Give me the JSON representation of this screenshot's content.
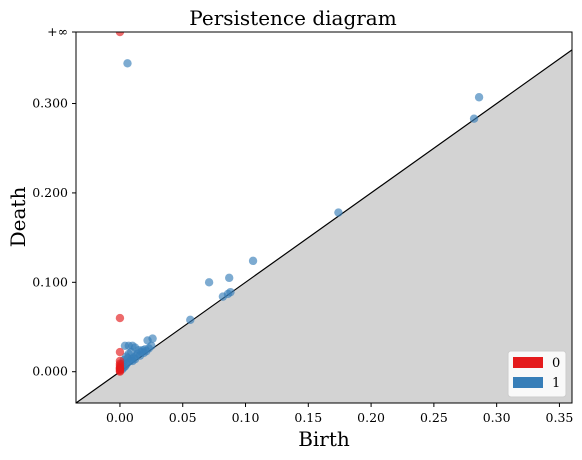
{
  "chart_data": {
    "type": "scatter",
    "title": "Persistence diagram",
    "xlabel": "Birth",
    "ylabel": "Death",
    "xlim": [
      -0.035,
      0.36
    ],
    "ylim": [
      -0.035,
      0.38
    ],
    "x_ticks": [
      0.0,
      0.05,
      0.1,
      0.15,
      0.2,
      0.25,
      0.3,
      0.35
    ],
    "x_tick_labels": [
      "0.00",
      "0.05",
      "0.10",
      "0.15",
      "0.20",
      "0.25",
      "0.30",
      "0.35"
    ],
    "y_ticks": [
      0.0,
      0.1,
      0.2,
      0.3
    ],
    "y_tick_labels": [
      "0.000",
      "0.100",
      "0.200",
      "0.300"
    ],
    "infinity_level": 0.38,
    "infinity_label": "+∞",
    "diagonal_region_color": "#d3d3d3",
    "legend_position": "lower-right",
    "series": [
      {
        "name": "0",
        "color": "#e41a1c",
        "points": [
          [
            0.0,
            0.38
          ],
          [
            0.0,
            0.06
          ],
          [
            0.0,
            0.022
          ],
          [
            0.0,
            0.012
          ],
          [
            0.0,
            0.009
          ],
          [
            0.0,
            0.007
          ],
          [
            0.0,
            0.005
          ],
          [
            0.0,
            0.004
          ],
          [
            0.0,
            0.003
          ],
          [
            0.0,
            0.002
          ],
          [
            0.0,
            0.001
          ],
          [
            0.0,
            0.0
          ]
        ]
      },
      {
        "name": "1",
        "color": "#377eb8",
        "points": [
          [
            0.006,
            0.345
          ],
          [
            0.286,
            0.307
          ],
          [
            0.282,
            0.283
          ],
          [
            0.174,
            0.178
          ],
          [
            0.106,
            0.124
          ],
          [
            0.087,
            0.105
          ],
          [
            0.071,
            0.1
          ],
          [
            0.088,
            0.089
          ],
          [
            0.086,
            0.087
          ],
          [
            0.082,
            0.084
          ],
          [
            0.056,
            0.058
          ],
          [
            0.026,
            0.037
          ],
          [
            0.022,
            0.035
          ],
          [
            0.025,
            0.029
          ],
          [
            0.02,
            0.025
          ],
          [
            0.004,
            0.029
          ],
          [
            0.007,
            0.029
          ],
          [
            0.01,
            0.029
          ],
          [
            0.012,
            0.027
          ],
          [
            0.015,
            0.024
          ],
          [
            0.017,
            0.022
          ],
          [
            0.013,
            0.018
          ],
          [
            0.011,
            0.016
          ],
          [
            0.009,
            0.014
          ],
          [
            0.008,
            0.012
          ],
          [
            0.006,
            0.01
          ],
          [
            0.005,
            0.008
          ],
          [
            0.004,
            0.006
          ],
          [
            0.003,
            0.005
          ],
          [
            0.002,
            0.003
          ],
          [
            0.007,
            0.02
          ],
          [
            0.005,
            0.017
          ],
          [
            0.009,
            0.022
          ],
          [
            0.014,
            0.02
          ],
          [
            0.018,
            0.024
          ],
          [
            0.003,
            0.013
          ],
          [
            0.006,
            0.015
          ],
          [
            0.002,
            0.009
          ],
          [
            0.01,
            0.012
          ],
          [
            0.012,
            0.014
          ],
          [
            0.016,
            0.018
          ],
          [
            0.019,
            0.021
          ],
          [
            0.021,
            0.023
          ],
          [
            0.023,
            0.026
          ]
        ]
      }
    ]
  }
}
